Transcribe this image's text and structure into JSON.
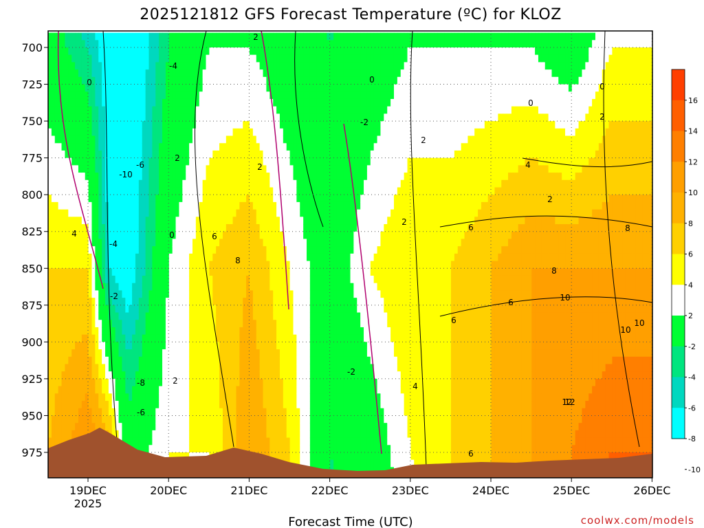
{
  "chart_data": {
    "type": "heatmap",
    "title": "2025121812 GFS Forecast Temperature (ºC) for KLOZ",
    "xlabel": "Forecast Time (UTC)",
    "ylabel": "",
    "credit": "coolwx.com/models",
    "y_axis": {
      "label_values": [
        "700",
        "725",
        "750",
        "775",
        "800",
        "825",
        "850",
        "875",
        "900",
        "925",
        "950",
        "975"
      ],
      "ylim": [
        990,
        690
      ],
      "grid": true
    },
    "x_axis": {
      "tick_labels": [
        "19DEC",
        "20DEC",
        "21DEC",
        "22DEC",
        "23DEC",
        "24DEC",
        "25DEC",
        "26DEC"
      ],
      "year_label": "2025",
      "xlim_days_from_19dec": [
        -0.5,
        7.0
      ],
      "grid": true
    },
    "colorbar": {
      "labels": [
        "16",
        "14",
        "12",
        "10",
        "8",
        "6",
        "4",
        "2",
        "-2",
        "-4",
        "-6",
        "-8",
        "-10"
      ],
      "colors": [
        "#ff3f00",
        "#ff5f00",
        "#ff7f00",
        "#ff9f00",
        "#ffb100",
        "#ffd000",
        "#ffff00",
        "#ffffff",
        "#00ff33",
        "#00e57f",
        "#00d8bf",
        "#00ffff"
      ]
    },
    "contour_labels": [
      "2",
      "0",
      "-4",
      "-6",
      "-10",
      "2",
      "0",
      "-2",
      "2",
      "0",
      "0",
      "2",
      "4",
      "2",
      "2",
      "6",
      "8",
      "4",
      "2",
      "6",
      "8",
      "12",
      "10",
      "8",
      "6",
      "10",
      "6",
      "-4",
      "-2",
      "0",
      "-2",
      "-8",
      "-6",
      "2",
      "6",
      "4",
      "12",
      "10"
    ],
    "series": [
      {
        "name": "",
        "x_days": [
          -0.5,
          0.0,
          0.25,
          0.5,
          1.0,
          1.5,
          2.0,
          2.5,
          3.0,
          3.5,
          4.0,
          4.5,
          5.0,
          5.5,
          6.0,
          6.5,
          7.0
        ],
        "t975": [
          8,
          12,
          10,
          0,
          4,
          4,
          10,
          6,
          -2,
          0,
          4,
          6,
          8,
          10,
          12,
          14,
          14
        ],
        "t850": [
          6,
          6,
          -6,
          -8,
          2,
          6,
          8,
          4,
          0,
          4,
          6,
          6,
          8,
          10,
          10,
          10,
          10
        ],
        "t700": [
          0,
          -4,
          -8,
          -10,
          -2,
          2,
          2,
          0,
          -2,
          0,
          2,
          2,
          2,
          2,
          0,
          4,
          4
        ]
      }
    ],
    "terrain_color": "#a0522d"
  }
}
